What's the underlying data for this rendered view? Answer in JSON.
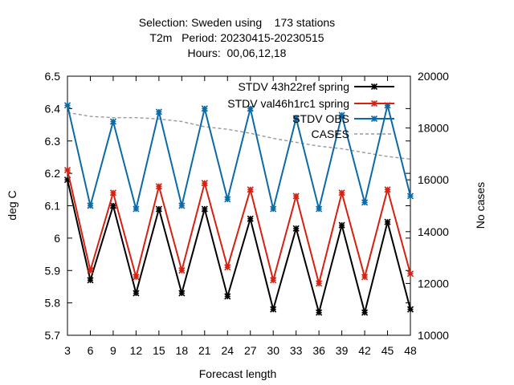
{
  "chart_data": {
    "type": "line",
    "title_lines": [
      "Selection: Sweden using    173 stations",
      "T2m   Period: 20230415-20230515",
      "Hours:  00,06,12,18"
    ],
    "xlabel": "Forecast length",
    "ylabel": "deg C",
    "y2label": "No cases",
    "x": [
      3,
      6,
      9,
      12,
      15,
      18,
      21,
      24,
      27,
      30,
      33,
      36,
      39,
      42,
      45,
      48
    ],
    "xlim": [
      3,
      48
    ],
    "ylim": [
      5.7,
      6.5
    ],
    "y2lim": [
      10000,
      20000
    ],
    "yticks": [
      "5.7",
      "5.8",
      "5.9",
      "6",
      "6.1",
      "6.2",
      "6.3",
      "6.4",
      "6.5"
    ],
    "y2ticks": [
      "10000",
      "12000",
      "14000",
      "16000",
      "18000",
      "20000"
    ],
    "legend_position": "top-right",
    "grid": false,
    "series": [
      {
        "name": "STDV 43h22_ref_spring",
        "legend_label": "STDV 43h22ref spring",
        "color": "#000000",
        "axis": "y",
        "values": [
          6.18,
          5.87,
          6.1,
          5.83,
          6.09,
          5.83,
          6.09,
          5.82,
          6.06,
          5.78,
          6.03,
          5.77,
          6.04,
          5.77,
          6.05,
          5.78
        ]
      },
      {
        "name": "STDV val46h1rc1_spring",
        "legend_label": "STDV val46h1rc1 spring",
        "color": "#d62010",
        "axis": "y",
        "values": [
          6.21,
          5.9,
          6.14,
          5.88,
          6.16,
          5.9,
          6.17,
          5.91,
          6.15,
          5.87,
          6.13,
          5.86,
          6.14,
          5.88,
          6.15,
          5.89
        ]
      },
      {
        "name": "STDV OBS",
        "legend_label": "STDV OBS",
        "color": "#0a6aa8",
        "axis": "y",
        "values": [
          6.41,
          6.1,
          6.36,
          6.09,
          6.39,
          6.1,
          6.4,
          6.12,
          6.4,
          6.09,
          6.37,
          6.09,
          6.38,
          6.11,
          6.41,
          6.13
        ]
      },
      {
        "name": "CASES",
        "legend_label": "CASES",
        "color": "#999999",
        "axis": "y2",
        "dashed": true,
        "values": [
          18600,
          18450,
          18400,
          18400,
          18350,
          18250,
          18050,
          17950,
          17800,
          17600,
          17450,
          17300,
          17200,
          17050,
          16900,
          16800
        ]
      }
    ]
  }
}
